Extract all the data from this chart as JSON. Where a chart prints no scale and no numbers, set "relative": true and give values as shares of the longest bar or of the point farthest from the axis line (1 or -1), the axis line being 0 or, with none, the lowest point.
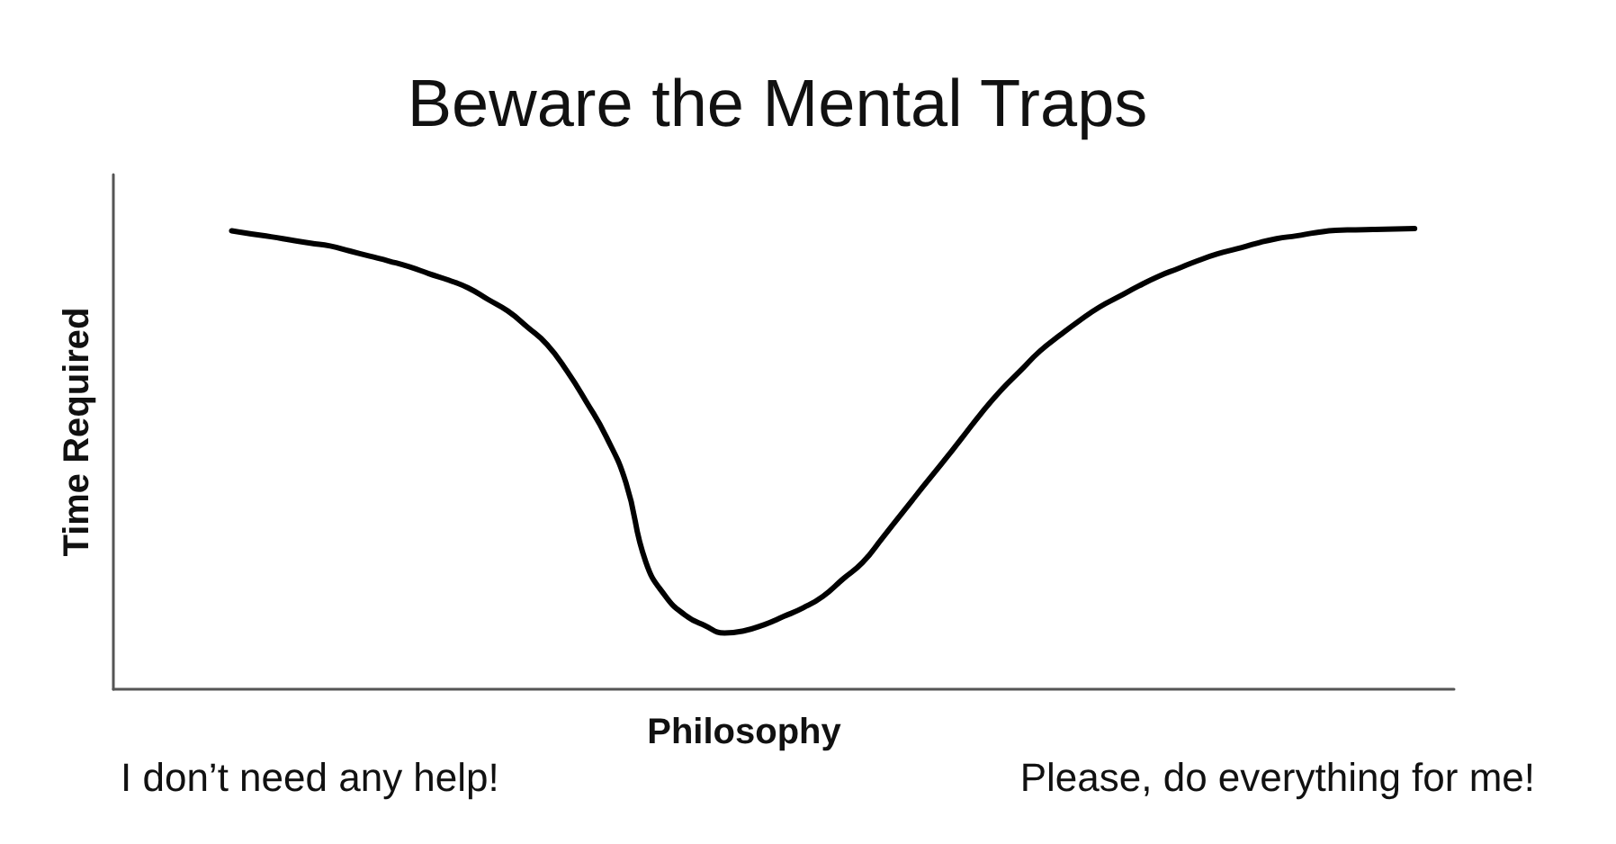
{
  "chart_data": {
    "type": "line",
    "title": "Beware the Mental Traps",
    "xlabel": "Philosophy",
    "ylabel": "Time Required",
    "annotations": [
      "I don’t need any help!",
      "Please, do everything for me!"
    ],
    "relative": true,
    "marker": "none",
    "line_style": "solid",
    "categories": [
      null,
      null,
      null,
      null,
      null,
      null,
      null,
      null,
      null,
      null,
      null,
      null,
      null,
      null,
      null,
      null,
      null,
      null,
      null,
      null,
      null,
      null,
      null,
      null,
      null,
      null,
      null,
      null,
      null,
      null,
      null,
      null,
      null,
      null,
      null,
      null,
      null,
      null,
      null,
      null,
      null,
      null,
      null,
      null,
      null,
      null,
      null,
      null,
      null,
      null,
      null,
      null,
      null,
      null,
      null,
      null,
      null,
      null,
      null,
      null,
      null,
      null,
      null,
      null,
      null,
      null,
      null,
      null,
      null
    ],
    "series": [
      {
        "color": "#000000",
        "values": [
          null,
          null,
          null,
          null,
          null,
          null,
          0.995,
          0.988,
          0.982,
          0.975,
          0.968,
          0.962,
          0.951,
          0.94,
          0.929,
          0.917,
          0.902,
          0.888,
          0.871,
          0.846,
          0.821,
          0.786,
          0.748,
          0.691,
          0.623,
          0.548,
          0.448,
          0.277,
          0.202,
          0.161,
          0.138,
          0.122,
          0.127,
          0.14,
          0.158,
          0.177,
          0.202,
          0.239,
          0.275,
          0.328,
          0.382,
          0.436,
          0.489,
          0.543,
          0.598,
          0.648,
          0.691,
          0.734,
          0.768,
          0.8,
          0.829,
          0.852,
          0.875,
          0.896,
          0.913,
          0.93,
          0.945,
          0.956,
          0.968,
          0.978,
          0.984,
          0.991,
          0.996,
          0.997,
          0.998,
          0.999,
          1,
          null,
          null
        ]
      }
    ]
  }
}
